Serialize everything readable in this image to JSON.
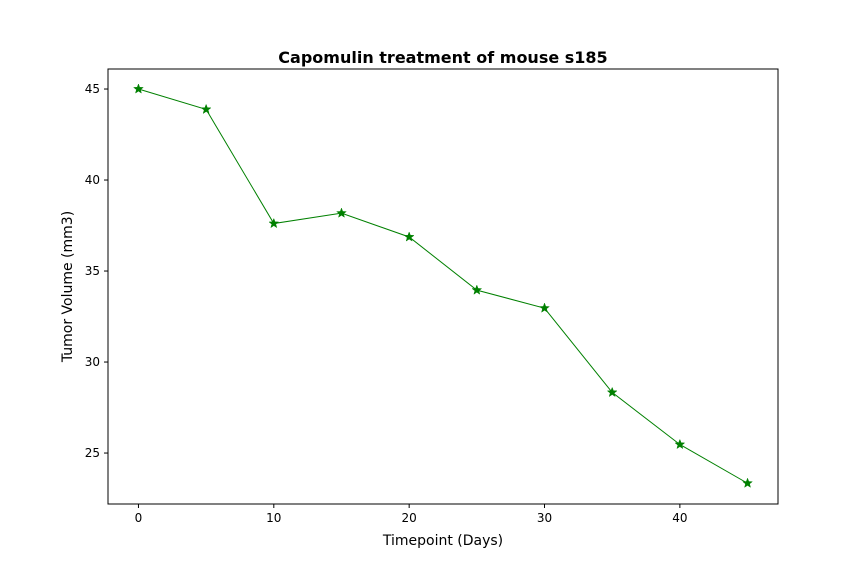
{
  "chart_data": {
    "type": "line",
    "title": "Capomulin treatment of mouse s185",
    "xlabel": "Timepoint (Days)",
    "ylabel": "Tumor Volume (mm3)",
    "xlim": [
      -2.25,
      47.25
    ],
    "ylim": [
      22.2,
      46.1
    ],
    "xticks": [
      0,
      10,
      20,
      30,
      40
    ],
    "yticks": [
      25,
      30,
      35,
      40,
      45
    ],
    "grid": false,
    "legend": "none",
    "series": [
      {
        "color": "#008000",
        "marker": "star",
        "x": [
          0,
          5,
          10,
          15,
          20,
          25,
          30,
          35,
          40,
          45
        ],
        "y": [
          45.0,
          43.88,
          37.61,
          38.18,
          36.87,
          33.95,
          32.96,
          28.33,
          25.47,
          23.34
        ]
      }
    ]
  }
}
